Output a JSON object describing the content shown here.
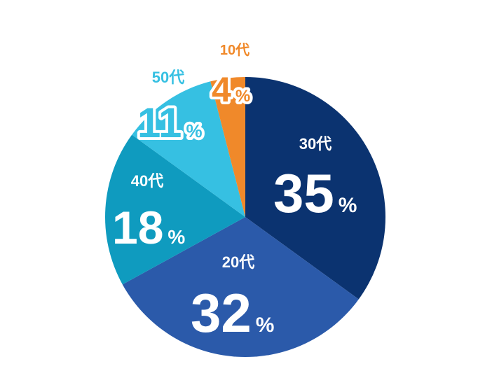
{
  "chart_data": {
    "type": "pie",
    "start": "top",
    "direction": "clockwise",
    "percent_sign": "%",
    "slices": [
      {
        "label": "30代",
        "value": 35,
        "color": "#0b3370"
      },
      {
        "label": "20代",
        "value": 32,
        "color": "#2b5aaa"
      },
      {
        "label": "40代",
        "value": 18,
        "color": "#0f9bbf"
      },
      {
        "label": "50代",
        "value": 11,
        "color": "#36c0e2"
      },
      {
        "label": "10代",
        "value": 4,
        "color": "#f0892a"
      }
    ]
  }
}
